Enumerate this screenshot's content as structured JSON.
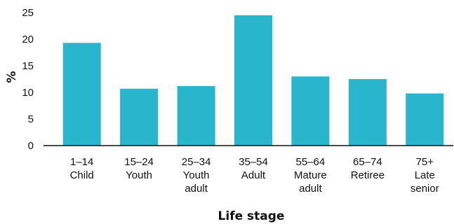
{
  "chart_data": {
    "type": "bar",
    "categories": [
      [
        "1–14",
        "Child"
      ],
      [
        "15–24",
        "Youth"
      ],
      [
        "25–34",
        "Youth",
        "adult"
      ],
      [
        "35–54",
        "Adult"
      ],
      [
        "55–64",
        "Mature",
        "adult"
      ],
      [
        "65–74",
        "Retiree"
      ],
      [
        "75+",
        "Late",
        "senior"
      ]
    ],
    "values": [
      19.3,
      10.7,
      11.2,
      24.5,
      13.0,
      12.5,
      9.8
    ],
    "title": "",
    "xlabel": "Life stage",
    "ylabel": "%",
    "ylim": [
      0,
      25
    ],
    "yticks": [
      0,
      5,
      10,
      15,
      20,
      25
    ],
    "grid": false,
    "bar_color": "#29b6cc",
    "axis_color": "#111111"
  }
}
